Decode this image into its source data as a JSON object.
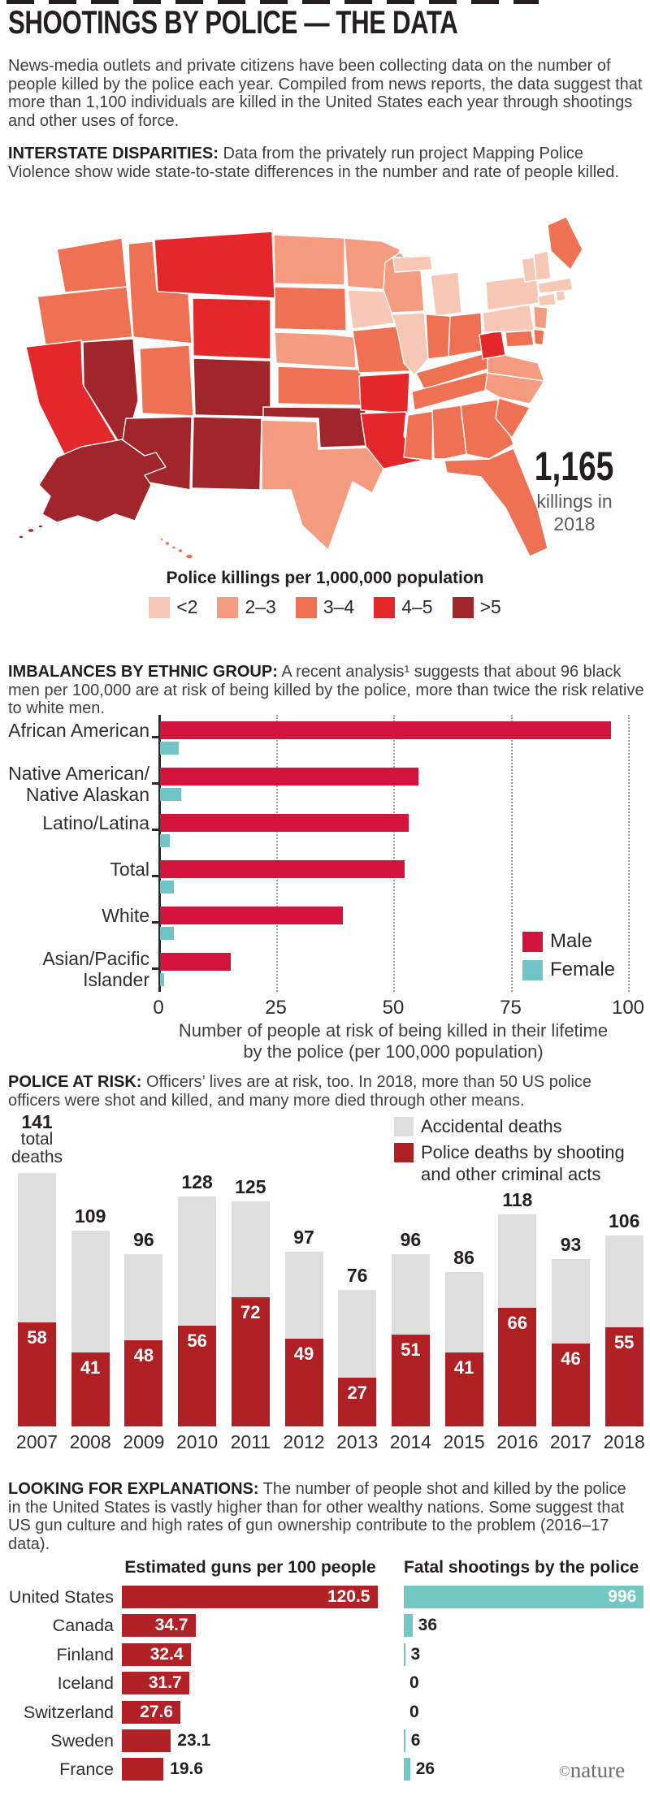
{
  "header": {
    "title": "SHOOTINGS BY POLICE — THE DATA",
    "intro": "News-media outlets and private citizens have been collecting data on the number of people killed by the police each year. Compiled from news reports, the data suggest that more than 1,100 individuals are killed in the United States each year through shootings and other uses of force."
  },
  "sections": {
    "interstate": {
      "lead": "INTERSTATE DISPARITIES:",
      "text": "Data from the privately run project Mapping Police Violence show wide state-to-state differences in the number and rate of people killed."
    },
    "imbalances": {
      "lead": "IMBALANCES BY ETHNIC GROUP:",
      "text": "A recent analysis¹ suggests that about 96 black men per 100,000 are at risk of being killed by the police, more than twice the risk relative to white men."
    },
    "police_risk": {
      "lead": "POLICE AT RISK:",
      "text": "Officers’ lives are at risk, too. In 2018, more than 50 US police officers were shot and killed, and many more died through other means."
    },
    "explanations": {
      "lead": "LOOKING FOR EXPLANATIONS:",
      "text": "The number of people shot and killed by the police in the United States is vastly higher than for other wealthy nations. Some suggest that US gun culture and high rates of gun ownership contribute to the problem (2016–17 data)."
    }
  },
  "map": {
    "callout": {
      "number": "1,165",
      "line1": "killings in",
      "line2": "2018"
    },
    "legend_title": "Police killings per 1,000,000 population",
    "legend": [
      {
        "label": "<2",
        "color": "#f8c8b6"
      },
      {
        "label": "2–3",
        "color": "#f49b80"
      },
      {
        "label": "3–4",
        "color": "#ef7154"
      },
      {
        "label": "4–5",
        "color": "#e4272a"
      },
      {
        "label": ">5",
        "color": "#a1262c"
      }
    ],
    "states": {
      "WA": "3–4",
      "OR": "3–4",
      "CA": "4–5",
      "NV": ">5",
      "ID": "3–4",
      "MT": "4–5",
      "WY": "4–5",
      "UT": "3–4",
      "CO": ">5",
      "AZ": ">5",
      "NM": ">5",
      "ND": "2–3",
      "SD": "3–4",
      "NE": "2–3",
      "KS": "3–4",
      "OK": ">5",
      "TX": "2–3",
      "MN": "2–3",
      "IA": "<2",
      "MO": "3–4",
      "AR": "4–5",
      "LA": "4–5",
      "WI": "2–3",
      "IL": "<2",
      "MI": "<2",
      "IN": "3–4",
      "OH": "3–4",
      "KY": "3–4",
      "TN": "3–4",
      "MS": "3–4",
      "AL": "3–4",
      "GA": "3–4",
      "FL": "3–4",
      "SC": "3–4",
      "NC": "2–3",
      "VA": "2–3",
      "WV": "4–5",
      "MD": "3–4",
      "DE": "3–4",
      "PA": "<2",
      "NY": "<2",
      "NJ": "2–3",
      "CT": "<2",
      "RI": "<2",
      "MA": "<2",
      "VT": "<2",
      "NH": "<2",
      "ME": "3–4",
      "AK": ">5",
      "HI": "3–4"
    }
  },
  "chart_data": [
    {
      "id": "ethnic",
      "type": "bar",
      "orientation": "horizontal",
      "categories": [
        [
          "African American"
        ],
        [
          "Native American/",
          "Native Alaskan"
        ],
        [
          "Latino/Latina"
        ],
        [
          "Total"
        ],
        [
          "White"
        ],
        [
          "Asian/Pacific",
          "Islander"
        ]
      ],
      "series": [
        {
          "name": "Male",
          "color": "#d2143d",
          "values": [
            96,
            55,
            53,
            52,
            39,
            15
          ]
        },
        {
          "name": "Female",
          "color": "#70c6c6",
          "values": [
            4,
            4.5,
            2,
            3,
            3,
            0.8
          ]
        }
      ],
      "xlim": [
        0,
        100
      ],
      "xticks": [
        0,
        25,
        50,
        75,
        100
      ],
      "grid": "dotted-vertical",
      "legend_position": "inside-right-bottom",
      "xlabel_lines": [
        "Number of people at risk of being killed in their lifetime",
        "by the police (per 100,000 population)"
      ]
    },
    {
      "id": "police-deaths",
      "type": "stacked-bar",
      "categories": [
        "2007",
        "2008",
        "2009",
        "2010",
        "2011",
        "2012",
        "2013",
        "2014",
        "2015",
        "2016",
        "2017",
        "2018"
      ],
      "series": [
        {
          "name": "Accidental deaths",
          "color": "#dedede"
        },
        {
          "name": "Police deaths by shooting and other criminal acts",
          "color": "#ae2024"
        }
      ],
      "totals": [
        141,
        109,
        96,
        128,
        125,
        97,
        76,
        96,
        86,
        118,
        93,
        106
      ],
      "shooting_deaths": [
        58,
        41,
        48,
        56,
        72,
        49,
        27,
        51,
        41,
        66,
        46,
        55
      ],
      "first_bar_note": [
        "141",
        "total",
        "deaths"
      ],
      "legend_line1": "Accidental deaths",
      "legend_line2": [
        "Police deaths by shooting",
        "and other criminal acts"
      ],
      "ylim": [
        0,
        141
      ]
    },
    {
      "id": "international",
      "type": "bar",
      "orientation": "horizontal",
      "categories": [
        "United States",
        "Canada",
        "Finland",
        "Iceland",
        "Switzerland",
        "Sweden",
        "France"
      ],
      "series": [
        {
          "name": "Estimated guns per 100 people",
          "color": "#b22126",
          "values": [
            120.5,
            34.7,
            32.4,
            31.7,
            27.6,
            23.1,
            19.6
          ],
          "value_labels": [
            "120.5",
            "34.7",
            "32.4",
            "31.7",
            "27.6",
            "23.1",
            "19.6"
          ],
          "labels_inside": [
            true,
            true,
            true,
            true,
            true,
            false,
            false
          ],
          "xlim": [
            0,
            125
          ]
        },
        {
          "name": "Fatal shootings by the police",
          "color": "#72c7c2",
          "values": [
            996,
            36,
            3,
            0,
            0,
            6,
            26
          ],
          "value_labels": [
            "996",
            "36",
            "3",
            "0",
            "0",
            "6",
            "26"
          ],
          "labels_inside": [
            true,
            false,
            false,
            false,
            false,
            false,
            false
          ],
          "xlim": [
            0,
            1050
          ]
        }
      ]
    }
  ],
  "footer": {
    "credit_symbol": "©",
    "credit_name": "nature"
  }
}
